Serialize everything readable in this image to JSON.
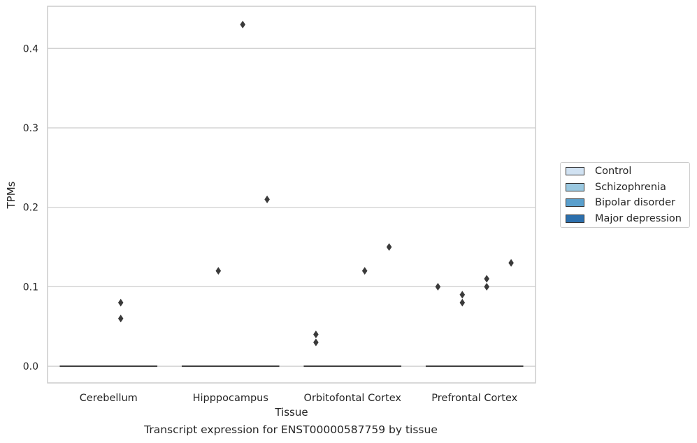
{
  "chart_data": {
    "type": "box",
    "ylabel": "TPMs",
    "xlabel": "Tissue",
    "ylim": [
      -0.021,
      0.453
    ],
    "yticks": [
      0.0,
      0.1,
      0.2,
      0.3,
      0.4
    ],
    "ytick_labels": [
      "0.0",
      "0.1",
      "0.2",
      "0.3",
      "0.4"
    ],
    "grid": "horizontal",
    "categories": [
      "Cerebellum",
      "Hipppocampus",
      "Orbitofontal Cortex",
      "Prefrontal Cortex"
    ],
    "boxes": [
      {
        "category": "Cerebellum",
        "q1": 0.0,
        "median": 0.0,
        "q3": 0.0
      },
      {
        "category": "Hipppocampus",
        "q1": 0.0,
        "median": 0.0,
        "q3": 0.0
      },
      {
        "category": "Orbitofontal Cortex",
        "q1": 0.0,
        "median": 0.0,
        "q3": 0.0
      },
      {
        "category": "Prefrontal Cortex",
        "q1": 0.0,
        "median": 0.0,
        "q3": 0.0
      }
    ],
    "outliers": [
      {
        "category": "Cerebellum",
        "group": "Bipolar disorder",
        "value": 0.08
      },
      {
        "category": "Cerebellum",
        "group": "Bipolar disorder",
        "value": 0.06
      },
      {
        "category": "Hipppocampus",
        "group": "Schizophrenia",
        "value": 0.12
      },
      {
        "category": "Hipppocampus",
        "group": "Bipolar disorder",
        "value": 0.43
      },
      {
        "category": "Hipppocampus",
        "group": "Major depression",
        "value": 0.21
      },
      {
        "category": "Orbitofontal Cortex",
        "group": "Control",
        "value": 0.04
      },
      {
        "category": "Orbitofontal Cortex",
        "group": "Control",
        "value": 0.03
      },
      {
        "category": "Orbitofontal Cortex",
        "group": "Bipolar disorder",
        "value": 0.12
      },
      {
        "category": "Orbitofontal Cortex",
        "group": "Major depression",
        "value": 0.15
      },
      {
        "category": "Prefrontal Cortex",
        "group": "Control",
        "value": 0.1
      },
      {
        "category": "Prefrontal Cortex",
        "group": "Schizophrenia",
        "value": 0.09
      },
      {
        "category": "Prefrontal Cortex",
        "group": "Schizophrenia",
        "value": 0.08
      },
      {
        "category": "Prefrontal Cortex",
        "group": "Bipolar disorder",
        "value": 0.11
      },
      {
        "category": "Prefrontal Cortex",
        "group": "Bipolar disorder",
        "value": 0.1
      },
      {
        "category": "Prefrontal Cortex",
        "group": "Major depression",
        "value": 0.13
      }
    ],
    "legend": {
      "placement": "right",
      "entries": [
        {
          "name": "Control",
          "color": "#d1e2f2"
        },
        {
          "name": "Schizophrenia",
          "color": "#9ac8e0"
        },
        {
          "name": "Bipolar disorder",
          "color": "#5a9fcc"
        },
        {
          "name": "Major depression",
          "color": "#2c6fac"
        }
      ]
    },
    "caption": "Transcript expression for ENST00000587759 by tissue"
  }
}
